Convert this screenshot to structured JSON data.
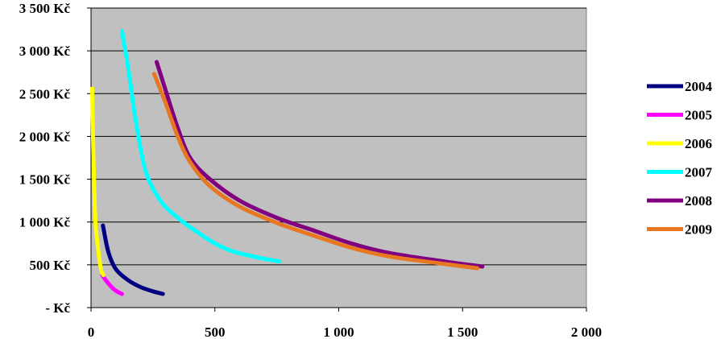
{
  "chart_data": {
    "type": "line",
    "title": "",
    "xlabel": "",
    "ylabel": "",
    "xlim": [
      0,
      2000
    ],
    "ylim": [
      0,
      3500
    ],
    "x_ticks": [
      0,
      500,
      1000,
      1500,
      2000
    ],
    "x_tick_labels": [
      "0",
      "500",
      "1 000",
      "1 500",
      "2 000"
    ],
    "y_ticks": [
      0,
      500,
      1000,
      1500,
      2000,
      2500,
      3000,
      3500
    ],
    "y_tick_labels": [
      "- Kč",
      "500 Kč",
      "1 000 Kč",
      "1 500 Kč",
      "2 000 Kč",
      "2 500 Kč",
      "3 000 Kč",
      "3 500 Kč"
    ],
    "grid": "horizontal",
    "plot_background": "#c0c0c0",
    "legend_position": "right",
    "series": [
      {
        "name": "2004",
        "color": "#000080",
        "points": [
          [
            48,
            960
          ],
          [
            70,
            650
          ],
          [
            100,
            450
          ],
          [
            150,
            320
          ],
          [
            200,
            240
          ],
          [
            250,
            190
          ],
          [
            290,
            160
          ]
        ]
      },
      {
        "name": "2005",
        "color": "#ff00ff",
        "points": [
          [
            45,
            380
          ],
          [
            65,
            300
          ],
          [
            90,
            220
          ],
          [
            110,
            180
          ],
          [
            125,
            160
          ]
        ]
      },
      {
        "name": "2006",
        "color": "#ffff00",
        "points": [
          [
            5,
            2560
          ],
          [
            8,
            2000
          ],
          [
            12,
            1500
          ],
          [
            18,
            1000
          ],
          [
            28,
            700
          ],
          [
            40,
            450
          ],
          [
            50,
            380
          ]
        ]
      },
      {
        "name": "2007",
        "color": "#00ffff",
        "points": [
          [
            125,
            3230
          ],
          [
            150,
            2800
          ],
          [
            180,
            2200
          ],
          [
            220,
            1600
          ],
          [
            280,
            1250
          ],
          [
            350,
            1050
          ],
          [
            420,
            900
          ],
          [
            500,
            750
          ],
          [
            560,
            670
          ],
          [
            620,
            620
          ],
          [
            700,
            570
          ],
          [
            760,
            540
          ]
        ]
      },
      {
        "name": "2008",
        "color": "#800080",
        "points": [
          [
            265,
            2870
          ],
          [
            300,
            2550
          ],
          [
            350,
            2100
          ],
          [
            400,
            1750
          ],
          [
            480,
            1500
          ],
          [
            600,
            1250
          ],
          [
            750,
            1050
          ],
          [
            900,
            900
          ],
          [
            1050,
            750
          ],
          [
            1200,
            640
          ],
          [
            1400,
            550
          ],
          [
            1580,
            480
          ]
        ]
      },
      {
        "name": "2009",
        "color": "#e87722",
        "points": [
          [
            255,
            2730
          ],
          [
            300,
            2400
          ],
          [
            350,
            2000
          ],
          [
            400,
            1700
          ],
          [
            480,
            1420
          ],
          [
            600,
            1180
          ],
          [
            750,
            990
          ],
          [
            900,
            840
          ],
          [
            1050,
            700
          ],
          [
            1200,
            600
          ],
          [
            1400,
            520
          ],
          [
            1560,
            460
          ]
        ]
      }
    ]
  }
}
